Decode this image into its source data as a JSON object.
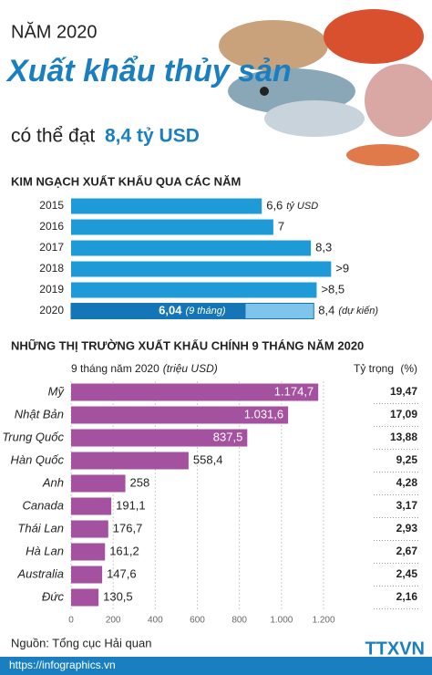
{
  "header": {
    "year": "NĂM 2020",
    "title": "Xuất khẩu thủy sản",
    "subtitle_prefix": "có thể đạt",
    "subtitle_value": "8,4 tỷ USD"
  },
  "chart_data": [
    {
      "type": "hbar",
      "title": "KIM NGẠCH XUẤT KHẨU QUA CÁC NĂM",
      "categories": [
        "2015",
        "2016",
        "2017",
        "2018",
        "2019",
        "2020"
      ],
      "values": [
        6.6,
        7,
        8.3,
        9,
        8.5,
        8.4
      ],
      "value_labels": [
        "6,6",
        "7",
        "8,3",
        ">9",
        ">8,5",
        "8,4"
      ],
      "unit": "tỷ USD",
      "color": "#1e9bd7",
      "xlim": [
        0,
        10
      ],
      "partial": {
        "value": 6.04,
        "label": "6,04",
        "note": "(9 tháng)",
        "color": "#1476b6"
      },
      "forecast_note": "(dự kiến)",
      "forecast_color": "#7fc4ea"
    },
    {
      "type": "hbar",
      "title": "NHỮNG THỊ TRƯỜNG XUẤT KHẨU CHÍNH 9 THÁNG NĂM 2020",
      "xlabel": "9 tháng năm 2020",
      "xlabel_unit": "(triệu USD)",
      "share_title": "Tỷ trọng",
      "share_unit": "(%)",
      "categories": [
        "Mỹ",
        "Nhật Bản",
        "Trung Quốc",
        "Hàn Quốc",
        "Anh",
        "Canada",
        "Thái Lan",
        "Hà Lan",
        "Australia",
        "Đức"
      ],
      "values": [
        1174.7,
        1031.6,
        837.5,
        558.4,
        258,
        191.1,
        176.7,
        161.2,
        147.6,
        130.5
      ],
      "value_labels": [
        "1.174,7",
        "1.031,6",
        "837,5",
        "558,4",
        "258",
        "191,1",
        "176,7",
        "161,2",
        "147,6",
        "130,5"
      ],
      "shares": [
        19.47,
        17.09,
        13.88,
        9.25,
        4.28,
        3.17,
        2.93,
        2.67,
        2.45,
        2.16
      ],
      "share_labels": [
        "19,47",
        "17,09",
        "13,88",
        "9,25",
        "4,28",
        "3,17",
        "2,93",
        "2,67",
        "2,45",
        "2,16"
      ],
      "color": "#a4529f",
      "xlim": [
        0,
        1200
      ],
      "xticks": [
        0,
        200,
        400,
        600,
        800,
        {
          "value": 1000,
          "label": "1.000"
        },
        {
          "value": 1200,
          "label": "1.200"
        }
      ],
      "grid": true
    }
  ],
  "footer": {
    "source": "Nguồn: Tổng cục Hải quan",
    "url": "https://infographics.vn",
    "logo": "TTXVN"
  }
}
